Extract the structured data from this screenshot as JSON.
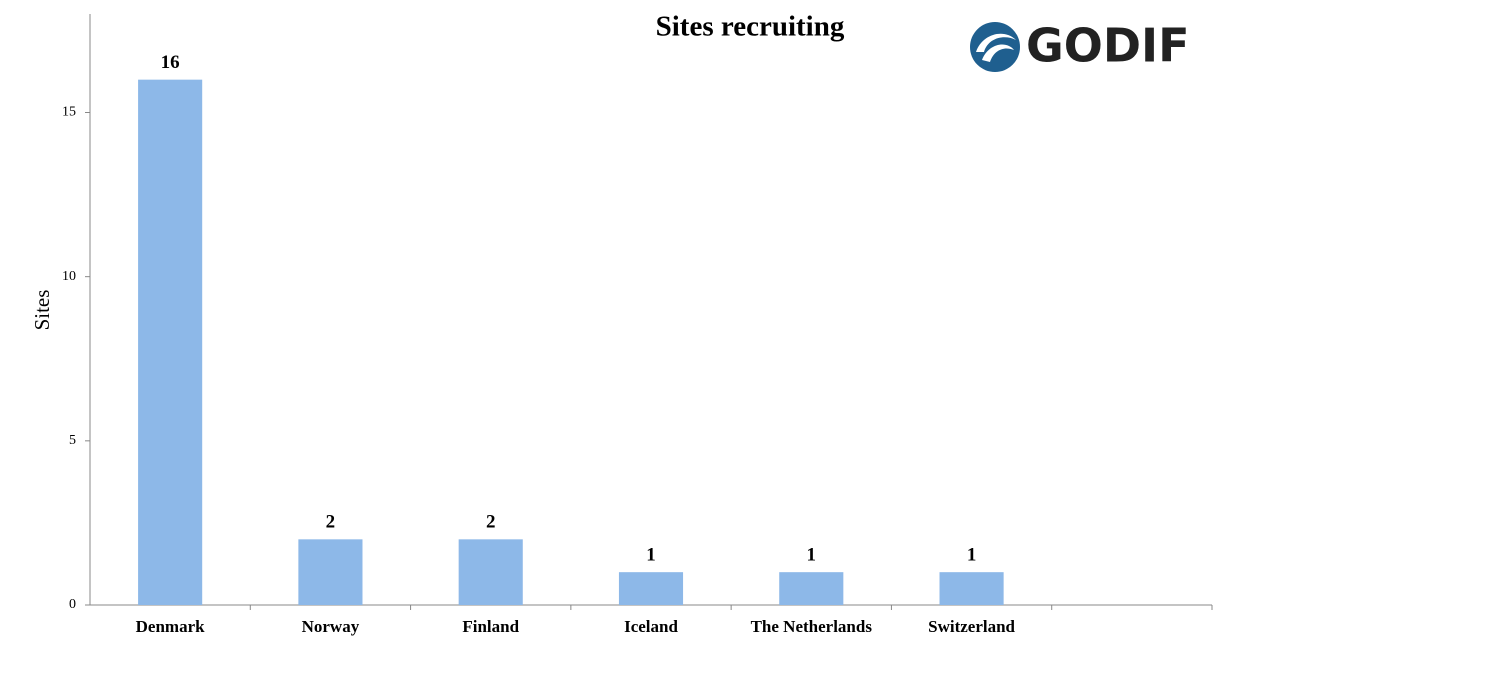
{
  "chart_data": {
    "type": "bar",
    "title": "Sites recruiting",
    "logo": "GODIF",
    "ylabel": "Sites",
    "categories": [
      "Denmark",
      "Norway",
      "Finland",
      "Iceland",
      "The Netherlands",
      "Switzerland",
      null
    ],
    "values": [
      16,
      2,
      2,
      1,
      1,
      1,
      null
    ],
    "color": "#8db8e8",
    "ylim": [
      0,
      18
    ],
    "yticks": [
      0,
      5,
      10,
      15
    ],
    "grid": false
  }
}
